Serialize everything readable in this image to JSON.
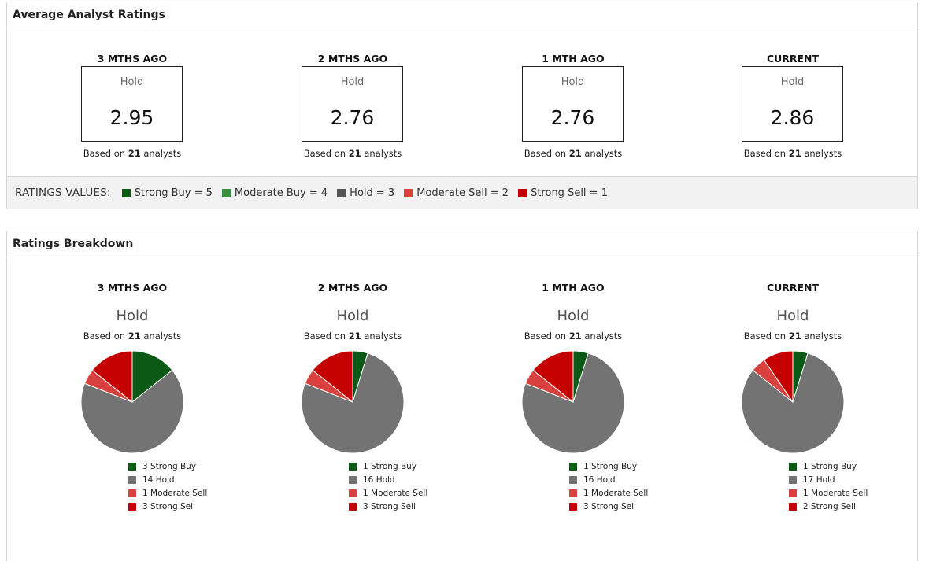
{
  "average_panel": {
    "title": "Average Analyst Ratings",
    "periods": [
      {
        "label": "3 MTHS AGO",
        "rating": "Hold",
        "value": "2.95",
        "based_prefix": "Based on ",
        "count": "21",
        "based_suffix": " analysts"
      },
      {
        "label": "2 MTHS AGO",
        "rating": "Hold",
        "value": "2.76",
        "based_prefix": "Based on ",
        "count": "21",
        "based_suffix": " analysts"
      },
      {
        "label": "1 MTH AGO",
        "rating": "Hold",
        "value": "2.76",
        "based_prefix": "Based on ",
        "count": "21",
        "based_suffix": " analysts"
      },
      {
        "label": "CURRENT",
        "rating": "Hold",
        "value": "2.86",
        "based_prefix": "Based on ",
        "count": "21",
        "based_suffix": " analysts"
      }
    ],
    "ratings_values": {
      "title": "RATINGS VALUES:",
      "items": [
        {
          "label": "Strong Buy = 5",
          "color": "#0a5a16"
        },
        {
          "label": "Moderate Buy = 4",
          "color": "#3a8f3f"
        },
        {
          "label": "Hold = 3",
          "color": "#555555"
        },
        {
          "label": "Moderate Sell = 2",
          "color": "#d9413f"
        },
        {
          "label": "Strong Sell = 1",
          "color": "#c40000"
        }
      ]
    }
  },
  "breakdown_panel": {
    "title": "Ratings Breakdown"
  },
  "chart_data": [
    {
      "type": "pie",
      "title": "3 MTHS AGO",
      "subtitle": "Hold",
      "note_prefix": "Based on ",
      "note_count": "21",
      "note_suffix": " analysts",
      "slices": [
        {
          "label": "3 Strong Buy",
          "value": 3,
          "color": "#0a5a16"
        },
        {
          "label": "14 Hold",
          "value": 14,
          "color": "#737373"
        },
        {
          "label": "1 Moderate Sell",
          "value": 1,
          "color": "#d9413f"
        },
        {
          "label": "3 Strong Sell",
          "value": 3,
          "color": "#c40000"
        }
      ]
    },
    {
      "type": "pie",
      "title": "2 MTHS AGO",
      "subtitle": "Hold",
      "note_prefix": "Based on ",
      "note_count": "21",
      "note_suffix": " analysts",
      "slices": [
        {
          "label": "1 Strong Buy",
          "value": 1,
          "color": "#0a5a16"
        },
        {
          "label": "16 Hold",
          "value": 16,
          "color": "#737373"
        },
        {
          "label": "1 Moderate Sell",
          "value": 1,
          "color": "#d9413f"
        },
        {
          "label": "3 Strong Sell",
          "value": 3,
          "color": "#c40000"
        }
      ]
    },
    {
      "type": "pie",
      "title": "1 MTH AGO",
      "subtitle": "Hold",
      "note_prefix": "Based on ",
      "note_count": "21",
      "note_suffix": " analysts",
      "slices": [
        {
          "label": "1 Strong Buy",
          "value": 1,
          "color": "#0a5a16"
        },
        {
          "label": "16 Hold",
          "value": 16,
          "color": "#737373"
        },
        {
          "label": "1 Moderate Sell",
          "value": 1,
          "color": "#d9413f"
        },
        {
          "label": "3 Strong Sell",
          "value": 3,
          "color": "#c40000"
        }
      ]
    },
    {
      "type": "pie",
      "title": "CURRENT",
      "subtitle": "Hold",
      "note_prefix": "Based on ",
      "note_count": "21",
      "note_suffix": " analysts",
      "slices": [
        {
          "label": "1 Strong Buy",
          "value": 1,
          "color": "#0a5a16"
        },
        {
          "label": "17 Hold",
          "value": 17,
          "color": "#737373"
        },
        {
          "label": "1 Moderate Sell",
          "value": 1,
          "color": "#d9413f"
        },
        {
          "label": "2 Strong Sell",
          "value": 2,
          "color": "#c40000"
        }
      ]
    }
  ]
}
